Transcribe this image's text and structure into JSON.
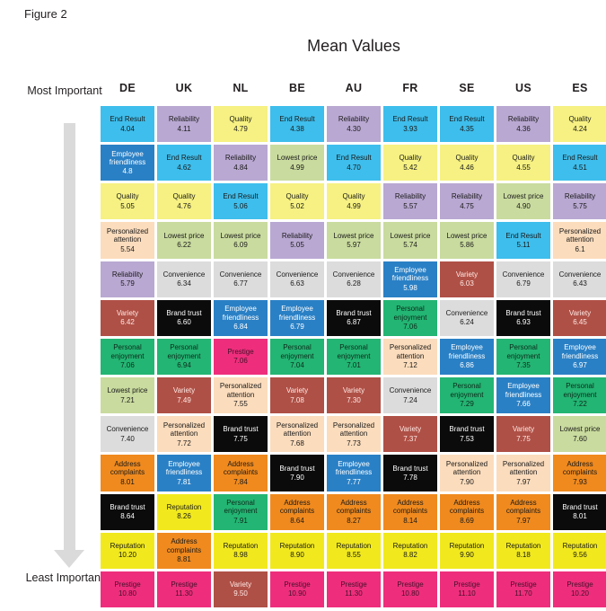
{
  "figure_label": "Figure 2",
  "chart_data": {
    "type": "table",
    "title": "Mean Values",
    "rank_axis": {
      "top": "Most Important",
      "bottom": "Least Important"
    },
    "columns": [
      "DE",
      "UK",
      "NL",
      "BE",
      "AU",
      "FR",
      "SE",
      "US",
      "ES"
    ],
    "attribute_styles": {
      "End Result": {
        "bg": "#3ebeec",
        "fg": "#1a1a1a"
      },
      "Reliability": {
        "bg": "#b9a8d2",
        "fg": "#1a1a1a"
      },
      "Quality": {
        "bg": "#f6f182",
        "fg": "#1a1a1a"
      },
      "Employee friendliness": {
        "bg": "#2a80c5",
        "fg": "#ffffff"
      },
      "Lowest price": {
        "bg": "#c9db9e",
        "fg": "#1a1a1a"
      },
      "Personalized attention": {
        "bg": "#fbdcbc",
        "fg": "#1a1a1a"
      },
      "Convenience": {
        "bg": "#dcdcdd",
        "fg": "#1a1a1a"
      },
      "Variety": {
        "bg": "#af5046",
        "fg": "#ffe9e4"
      },
      "Brand trust": {
        "bg": "#0b0b0b",
        "fg": "#ffffff"
      },
      "Personal enjoyment": {
        "bg": "#23b573",
        "fg": "#0d2a1b"
      },
      "Prestige": {
        "bg": "#ee2e7c",
        "fg": "#43112a"
      },
      "Address complaints": {
        "bg": "#f08a1e",
        "fg": "#1a1a1a"
      },
      "Reputation": {
        "bg": "#f1e91d",
        "fg": "#1a1a1a"
      }
    },
    "rows": [
      [
        [
          "End Result",
          "4.04"
        ],
        [
          "Reliability",
          "4.11"
        ],
        [
          "Quality",
          "4.79"
        ],
        [
          "End Result",
          "4.38"
        ],
        [
          "Reliability",
          "4.30"
        ],
        [
          "End Result",
          "3.93"
        ],
        [
          "End Result",
          "4.35"
        ],
        [
          "Reliability",
          "4.36"
        ],
        [
          "Quality",
          "4.24"
        ]
      ],
      [
        [
          "Employee friendliness",
          "4.8"
        ],
        [
          "End Result",
          "4.62"
        ],
        [
          "Reliability",
          "4.84"
        ],
        [
          "Lowest price",
          "4.99"
        ],
        [
          "End Result",
          "4.70"
        ],
        [
          "Quality",
          "5.42"
        ],
        [
          "Quality",
          "4.46"
        ],
        [
          "Quality",
          "4.55"
        ],
        [
          "End Result",
          "4.51"
        ]
      ],
      [
        [
          "Quality",
          "5.05"
        ],
        [
          "Quality",
          "4.76"
        ],
        [
          "End Result",
          "5.06"
        ],
        [
          "Quality",
          "5.02"
        ],
        [
          "Quality",
          "4.99"
        ],
        [
          "Reliability",
          "5.57"
        ],
        [
          "Reliability",
          "4.75"
        ],
        [
          "Lowest price",
          "4.90"
        ],
        [
          "Reliability",
          "5.75"
        ]
      ],
      [
        [
          "Personalized attention",
          "5.54"
        ],
        [
          "Lowest price",
          "6.22"
        ],
        [
          "Lowest price",
          "6.09"
        ],
        [
          "Reliability",
          "5.05"
        ],
        [
          "Lowest price",
          "5.97"
        ],
        [
          "Lowest price",
          "5.74"
        ],
        [
          "Lowest price",
          "5.86"
        ],
        [
          "End Result",
          "5.11"
        ],
        [
          "Personalized attention",
          "6.1"
        ]
      ],
      [
        [
          "Reliability",
          "5.79"
        ],
        [
          "Convenience",
          "6.34"
        ],
        [
          "Convenience",
          "6.77"
        ],
        [
          "Convenience",
          "6.63"
        ],
        [
          "Convenience",
          "6.28"
        ],
        [
          "Employee friendliness",
          "5.98"
        ],
        [
          "Variety",
          "6.03"
        ],
        [
          "Convenience",
          "6.79"
        ],
        [
          "Convenience",
          "6.43"
        ]
      ],
      [
        [
          "Variety",
          "6.42"
        ],
        [
          "Brand trust",
          "6.60"
        ],
        [
          "Employee friendliness",
          "6.84"
        ],
        [
          "Employee friendliness",
          "6.79"
        ],
        [
          "Brand trust",
          "6.87"
        ],
        [
          "Personal enjoyment",
          "7.06"
        ],
        [
          "Convenience",
          "6.24"
        ],
        [
          "Brand trust",
          "6.93"
        ],
        [
          "Variety",
          "6.45"
        ]
      ],
      [
        [
          "Personal enjoyment",
          "7.06"
        ],
        [
          "Personal enjoyment",
          "6.94"
        ],
        [
          "Prestige",
          "7.06"
        ],
        [
          "Personal enjoyment",
          "7.04"
        ],
        [
          "Personal enjoyment",
          "7.01"
        ],
        [
          "Personalized attention",
          "7.12"
        ],
        [
          "Employee friendliness",
          "6.86"
        ],
        [
          "Personal enjoyment",
          "7.35"
        ],
        [
          "Employee friendliness",
          "6.97"
        ]
      ],
      [
        [
          "Lowest price",
          "7.21"
        ],
        [
          "Variety",
          "7.49"
        ],
        [
          "Personalized attention",
          "7.55"
        ],
        [
          "Variety",
          "7.08"
        ],
        [
          "Variety",
          "7.30"
        ],
        [
          "Convenience",
          "7.24"
        ],
        [
          "Personal enjoyment",
          "7.29"
        ],
        [
          "Employee friendliness",
          "7.66"
        ],
        [
          "Personal enjoyment",
          "7.22"
        ]
      ],
      [
        [
          "Convenience",
          "7.40"
        ],
        [
          "Personalized attention",
          "7.72"
        ],
        [
          "Brand trust",
          "7.75"
        ],
        [
          "Personalized attention",
          "7.68"
        ],
        [
          "Personalized attention",
          "7.73"
        ],
        [
          "Variety",
          "7.37"
        ],
        [
          "Brand trust",
          "7.53"
        ],
        [
          "Variety",
          "7.75"
        ],
        [
          "Lowest price",
          "7.60"
        ]
      ],
      [
        [
          "Address complaints",
          "8.01"
        ],
        [
          "Employee friendliness",
          "7.81"
        ],
        [
          "Address complaints",
          "7.84"
        ],
        [
          "Brand trust",
          "7.90"
        ],
        [
          "Employee friendliness",
          "7.77"
        ],
        [
          "Brand trust",
          "7.78"
        ],
        [
          "Personalized attention",
          "7.90"
        ],
        [
          "Personalized attention",
          "7.97"
        ],
        [
          "Address complaints",
          "7.93"
        ]
      ],
      [
        [
          "Brand trust",
          "8.64"
        ],
        [
          "Reputation",
          "8.26"
        ],
        [
          "Personal enjoyment",
          "7.91"
        ],
        [
          "Address complaints",
          "8.64"
        ],
        [
          "Address complaints",
          "8.27"
        ],
        [
          "Address complaints",
          "8.14"
        ],
        [
          "Address complaints",
          "8.69"
        ],
        [
          "Address complaints",
          "7.97"
        ],
        [
          "Brand trust",
          "8.01"
        ]
      ],
      [
        [
          "Reputation",
          "10.20"
        ],
        [
          "Address complaints",
          "8.81"
        ],
        [
          "Reputation",
          "8.98"
        ],
        [
          "Reputation",
          "8.90"
        ],
        [
          "Reputation",
          "8.55"
        ],
        [
          "Reputation",
          "8.82"
        ],
        [
          "Reputation",
          "9.90"
        ],
        [
          "Reputation",
          "8.18"
        ],
        [
          "Reputation",
          "9.56"
        ]
      ],
      [
        [
          "Prestige",
          "10.80"
        ],
        [
          "Prestige",
          "11.30"
        ],
        [
          "Variety",
          "9.50"
        ],
        [
          "Prestige",
          "10.90"
        ],
        [
          "Prestige",
          "11.30"
        ],
        [
          "Prestige",
          "10.80"
        ],
        [
          "Prestige",
          "11.10"
        ],
        [
          "Prestige",
          "11.70"
        ],
        [
          "Prestige",
          "10.20"
        ]
      ]
    ]
  }
}
